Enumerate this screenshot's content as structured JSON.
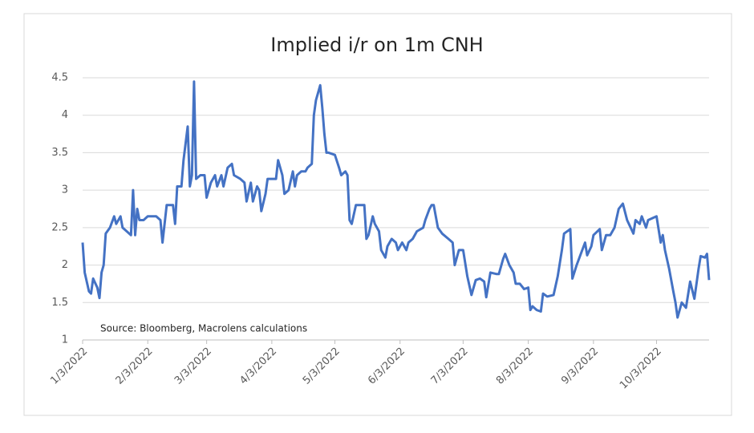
{
  "chart_data": {
    "type": "line",
    "title": "Implied i/r on 1m CNH",
    "annotation": "Source: Bloomberg, Macrolens calculations",
    "x": [
      "1/3/2022",
      "1/4/2022",
      "1/6/2022",
      "1/7/2022",
      "1/8/2022",
      "1/10/2022",
      "1/11/2022",
      "1/12/2022",
      "1/13/2022",
      "1/14/2022",
      "1/16/2022",
      "1/18/2022",
      "1/19/2022",
      "1/21/2022",
      "1/22/2022",
      "1/24/2022",
      "1/26/2022",
      "1/27/2022",
      "1/28/2022",
      "1/29/2022",
      "1/30/2022",
      "2/1/2022",
      "2/3/2022",
      "2/7/2022",
      "2/9/2022",
      "2/10/2022",
      "2/12/2022",
      "2/15/2022",
      "2/16/2022",
      "2/17/2022",
      "2/19/2022",
      "2/20/2022",
      "2/22/2022",
      "2/23/2022",
      "2/24/2022",
      "2/25/2022",
      "2/26/2022",
      "2/28/2022",
      "3/2/2022",
      "3/3/2022",
      "3/5/2022",
      "3/7/2022",
      "3/8/2022",
      "3/10/2022",
      "3/11/2022",
      "3/13/2022",
      "3/15/2022",
      "3/16/2022",
      "3/19/2022",
      "3/21/2022",
      "3/22/2022",
      "3/24/2022",
      "3/25/2022",
      "3/27/2022",
      "3/28/2022",
      "3/29/2022",
      "3/31/2022",
      "4/1/2022",
      "4/5/2022",
      "4/6/2022",
      "4/8/2022",
      "4/9/2022",
      "4/11/2022",
      "4/13/2022",
      "4/14/2022",
      "4/15/2022",
      "4/17/2022",
      "4/19/2022",
      "4/20/2022",
      "4/22/2022",
      "4/23/2022",
      "4/24/2022",
      "4/26/2022",
      "4/27/2022",
      "4/28/2022",
      "4/29/2022",
      "4/30/2022",
      "5/3/2022",
      "5/5/2022",
      "5/6/2022",
      "5/8/2022",
      "5/9/2022",
      "5/10/2022",
      "5/11/2022",
      "5/13/2022",
      "5/17/2022",
      "5/18/2022",
      "5/19/2022",
      "5/21/2022",
      "5/22/2022",
      "5/24/2022",
      "5/25/2022",
      "5/27/2022",
      "5/28/2022",
      "5/30/2022",
      "6/1/2022",
      "6/2/2022",
      "6/4/2022",
      "6/6/2022",
      "6/7/2022",
      "6/9/2022",
      "6/11/2022",
      "6/14/2022",
      "6/15/2022",
      "6/17/2022",
      "6/18/2022",
      "6/19/2022",
      "6/21/2022",
      "6/23/2022",
      "6/26/2022",
      "6/28/2022",
      "6/29/2022",
      "7/1/2022",
      "7/3/2022",
      "7/5/2022",
      "7/7/2022",
      "7/9/2022",
      "7/11/2022",
      "7/13/2022",
      "7/14/2022",
      "7/16/2022",
      "7/19/2022",
      "7/20/2022",
      "7/22/2022",
      "7/23/2022",
      "7/25/2022",
      "7/27/2022",
      "7/28/2022",
      "7/30/2022",
      "8/1/2022",
      "8/3/2022",
      "8/4/2022",
      "8/5/2022",
      "8/7/2022",
      "8/9/2022",
      "8/10/2022",
      "8/12/2022",
      "8/15/2022",
      "8/17/2022",
      "8/19/2022",
      "8/20/2022",
      "8/23/2022",
      "8/24/2022",
      "8/26/2022",
      "8/28/2022",
      "8/30/2022",
      "8/31/2022",
      "9/2/2022",
      "9/3/2022",
      "9/6/2022",
      "9/7/2022",
      "9/9/2022",
      "9/11/2022",
      "9/13/2022",
      "9/15/2022",
      "9/17/2022",
      "9/19/2022",
      "9/22/2022",
      "9/23/2022",
      "9/25/2022",
      "9/26/2022",
      "9/28/2022",
      "9/29/2022",
      "10/3/2022",
      "10/5/2022",
      "10/6/2022",
      "10/7/2022",
      "10/9/2022",
      "10/11/2022",
      "10/12/2022",
      "10/13/2022",
      "10/15/2022",
      "10/17/2022",
      "10/19/2022",
      "10/21/2022",
      "10/23/2022",
      "10/24/2022",
      "10/26/2022",
      "10/27/2022",
      "10/28/2022"
    ],
    "series": [
      {
        "color": "#4472c4",
        "values": [
          2.3,
          1.9,
          1.65,
          1.62,
          1.82,
          1.7,
          1.56,
          1.9,
          2.0,
          2.42,
          2.5,
          2.65,
          2.55,
          2.65,
          2.5,
          2.45,
          2.4,
          3.0,
          2.4,
          2.75,
          2.6,
          2.6,
          2.65,
          2.65,
          2.6,
          2.3,
          2.8,
          2.8,
          2.55,
          3.05,
          3.05,
          3.4,
          3.85,
          3.05,
          3.2,
          4.45,
          3.15,
          3.2,
          3.2,
          2.9,
          3.1,
          3.2,
          3.05,
          3.2,
          3.05,
          3.3,
          3.35,
          3.2,
          3.15,
          3.1,
          2.85,
          3.1,
          2.85,
          3.05,
          3.0,
          2.72,
          2.95,
          3.15,
          3.15,
          3.4,
          3.2,
          2.95,
          3.0,
          3.25,
          3.05,
          3.2,
          3.25,
          3.25,
          3.3,
          3.35,
          4.0,
          4.2,
          4.4,
          4.1,
          3.75,
          3.5,
          3.5,
          3.47,
          3.3,
          3.2,
          3.25,
          3.2,
          2.6,
          2.55,
          2.8,
          2.8,
          2.35,
          2.4,
          2.65,
          2.55,
          2.45,
          2.2,
          2.1,
          2.25,
          2.35,
          2.3,
          2.2,
          2.3,
          2.2,
          2.3,
          2.35,
          2.45,
          2.5,
          2.6,
          2.75,
          2.8,
          2.8,
          2.5,
          2.42,
          2.35,
          2.3,
          2.0,
          2.2,
          2.2,
          1.85,
          1.6,
          1.8,
          1.82,
          1.78,
          1.57,
          1.9,
          1.88,
          1.88,
          2.08,
          2.15,
          2.0,
          1.9,
          1.75,
          1.75,
          1.68,
          1.7,
          1.4,
          1.45,
          1.4,
          1.38,
          1.62,
          1.58,
          1.6,
          1.85,
          2.2,
          2.42,
          2.48,
          1.82,
          2.0,
          2.15,
          2.3,
          2.13,
          2.25,
          2.4,
          2.48,
          2.2,
          2.4,
          2.4,
          2.5,
          2.75,
          2.82,
          2.6,
          2.42,
          2.6,
          2.55,
          2.65,
          2.5,
          2.6,
          2.65,
          2.3,
          2.4,
          2.2,
          1.95,
          1.65,
          1.5,
          1.3,
          1.5,
          1.43,
          1.78,
          1.55,
          1.95,
          2.12,
          2.1,
          2.15,
          1.8
        ]
      }
    ],
    "xlim": [
      "1/3/2022",
      "10/28/2022"
    ],
    "xticks": [
      "1/3/2022",
      "2/3/2022",
      "3/3/2022",
      "4/3/2022",
      "5/3/2022",
      "6/3/2022",
      "7/3/2022",
      "8/3/2022",
      "9/3/2022",
      "10/3/2022"
    ],
    "ylim": [
      1,
      4.5
    ],
    "yticks": [
      1,
      1.5,
      2,
      2.5,
      3,
      3.5,
      4,
      4.5
    ],
    "grid": true
  }
}
